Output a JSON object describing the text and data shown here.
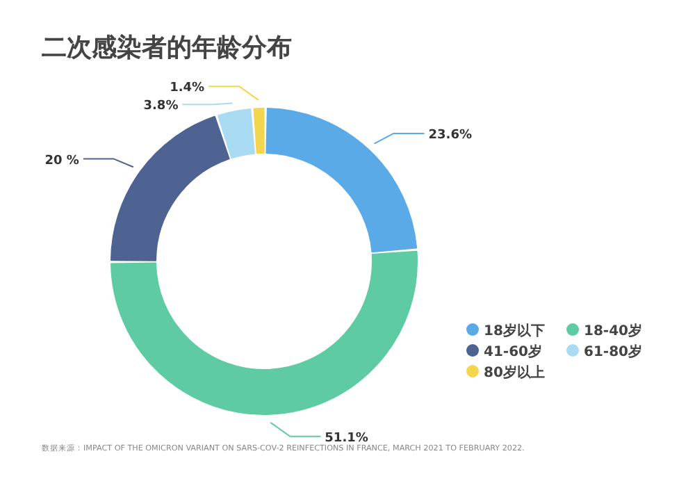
{
  "chart_data": {
    "type": "donut",
    "title": "二次感染者的年龄分布",
    "categories": [
      "18岁以下",
      "18-40岁",
      "41-60岁",
      "61-80岁",
      "80岁以上"
    ],
    "values": [
      23.6,
      51.1,
      20,
      3.8,
      1.4
    ],
    "value_labels": [
      "23.6%",
      "51.1%",
      "20 %",
      "3.8%",
      "1.4%"
    ],
    "colors": [
      "#5aaae8",
      "#5ecba3",
      "#4e6391",
      "#a9dcf3",
      "#f3d64e"
    ],
    "legend": "right",
    "annotations": [
      "数据来源：IMPACT OF THE OMICRON VARIANT ON SARS-COV-2 REINFECTIONS IN FRANCE, MARCH 2021 TO FEBRUARY 2022."
    ]
  }
}
